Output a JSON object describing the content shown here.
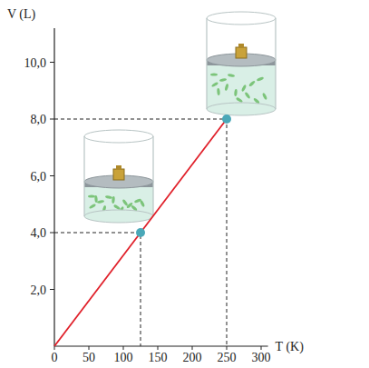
{
  "chart_data": {
    "type": "line",
    "x_label": "T (K)",
    "y_label": "V (L)",
    "series": [
      {
        "type": "line",
        "color": "#e0202a",
        "x": [
          0,
          125,
          250
        ],
        "values": [
          0,
          4,
          8
        ]
      },
      {
        "type": "scatter",
        "color": "#4aa8b8",
        "marker": "circle",
        "x": [
          125,
          250
        ],
        "values": [
          4,
          8
        ]
      }
    ],
    "xlim": [
      0,
      310
    ],
    "ylim": [
      0,
      11.2
    ],
    "xticks": [
      0,
      50,
      100,
      150,
      200,
      250,
      300
    ],
    "yticks": [
      {
        "value": 2,
        "label": "2,0"
      },
      {
        "value": 4,
        "label": "4,0"
      },
      {
        "value": 6,
        "label": "6,0"
      },
      {
        "value": 8,
        "label": "8,0"
      },
      {
        "value": 10,
        "label": "10,0"
      }
    ],
    "grid": false
  }
}
